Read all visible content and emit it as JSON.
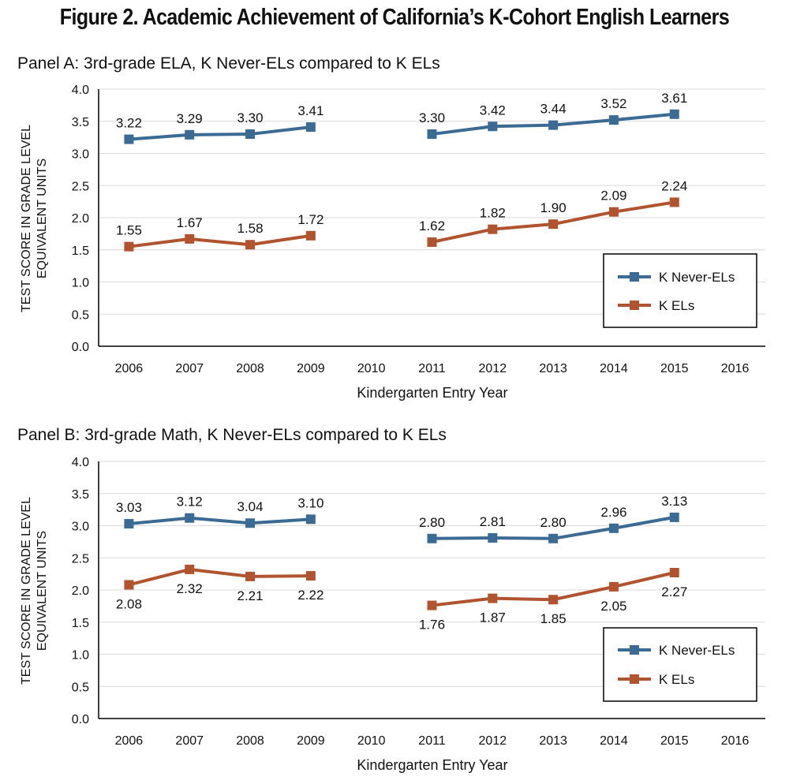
{
  "title": "Figure 2. Academic Achievement of California’s K-Cohort English Learners",
  "colors": {
    "never_el": "#3B6A93",
    "el": "#B0532F",
    "grid": "#D9D9D9",
    "axis": "#000000"
  },
  "chart_data": [
    {
      "type": "line",
      "title": "Panel A: 3rd-grade ELA, K Never-ELs compared to K ELs",
      "xlabel": "Kindergarten Entry Year",
      "ylabel": [
        "TEST SCORE IN GRADE LEVEL",
        "EQUIVALENT UNITS"
      ],
      "categories": [
        "2006",
        "2007",
        "2008",
        "2009",
        "2010",
        "2011",
        "2012",
        "2013",
        "2014",
        "2015",
        "2016"
      ],
      "ylim": [
        0,
        4
      ],
      "yticks": [
        "0.0",
        "0.5",
        "1.0",
        "1.5",
        "2.0",
        "2.5",
        "3.0",
        "3.5",
        "4.0"
      ],
      "grid": true,
      "legend_position": "bottom-right",
      "series": [
        {
          "name": "K Never-ELs",
          "values": [
            3.22,
            3.29,
            3.3,
            3.41,
            null,
            3.3,
            3.42,
            3.44,
            3.52,
            3.61,
            null
          ],
          "labels": [
            "3.22",
            "3.29",
            "3.30",
            "3.41",
            "",
            "3.30",
            "3.42",
            "3.44",
            "3.52",
            "3.61",
            ""
          ],
          "label_position": "above"
        },
        {
          "name": "K ELs",
          "values": [
            1.55,
            1.67,
            1.58,
            1.72,
            null,
            1.62,
            1.82,
            1.9,
            2.09,
            2.24,
            null
          ],
          "labels": [
            "1.55",
            "1.67",
            "1.58",
            "1.72",
            "",
            "1.62",
            "1.82",
            "1.90",
            "2.09",
            "2.24",
            ""
          ],
          "label_position": "above"
        }
      ]
    },
    {
      "type": "line",
      "title": "Panel B: 3rd-grade Math, K Never-ELs compared to K ELs",
      "xlabel": "Kindergarten Entry Year",
      "ylabel": [
        "TEST SCORE IN GRADE LEVEL",
        "EQUIVALENT UNITS"
      ],
      "categories": [
        "2006",
        "2007",
        "2008",
        "2009",
        "2010",
        "2011",
        "2012",
        "2013",
        "2014",
        "2015",
        "2016"
      ],
      "ylim": [
        0,
        4
      ],
      "yticks": [
        "0.0",
        "0.5",
        "1.0",
        "1.5",
        "2.0",
        "2.5",
        "3.0",
        "3.5",
        "4.0"
      ],
      "grid": true,
      "legend_position": "bottom-right",
      "series": [
        {
          "name": "K Never-ELs",
          "values": [
            3.03,
            3.12,
            3.04,
            3.1,
            null,
            2.8,
            2.81,
            2.8,
            2.96,
            3.13,
            null
          ],
          "labels": [
            "3.03",
            "3.12",
            "3.04",
            "3.10",
            "",
            "2.80",
            "2.81",
            "2.80",
            "2.96",
            "3.13",
            ""
          ],
          "label_position": "above"
        },
        {
          "name": "K ELs",
          "values": [
            2.08,
            2.32,
            2.21,
            2.22,
            null,
            1.76,
            1.87,
            1.85,
            2.05,
            2.27,
            null
          ],
          "labels": [
            "2.08",
            "2.32",
            "2.21",
            "2.22",
            "",
            "1.76",
            "1.87",
            "1.85",
            "2.05",
            "2.27",
            ""
          ],
          "label_position": "below"
        }
      ]
    }
  ]
}
